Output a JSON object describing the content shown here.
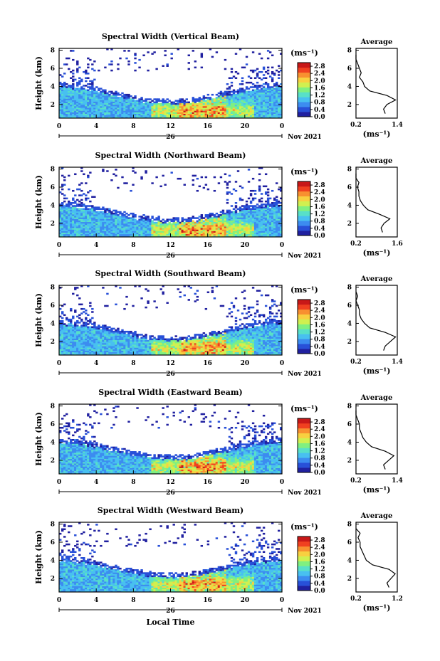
{
  "x_axis_label": "Local Time",
  "colorbar_unit": "(ms⁻¹)",
  "avg_title": "Average",
  "avg_unit": "(ms⁻¹)",
  "colors": [
    "#2020a0",
    "#2850d8",
    "#3c8cf0",
    "#48c0f0",
    "#58e0c8",
    "#80f080",
    "#d0f050",
    "#f8d040",
    "#f89030",
    "#f04020",
    "#c81818"
  ],
  "chart_data": [
    {
      "type": "heatmap",
      "title": "Spectral Width (Vertical Beam)",
      "ylabel": "Height (km)",
      "yticks": [
        "2",
        "4",
        "6",
        "8"
      ],
      "ylim": [
        0.5,
        8.2
      ],
      "xticks": [
        "0",
        "4",
        "8",
        "12",
        "16",
        "20",
        "0"
      ],
      "xlim": [
        0,
        24
      ],
      "date_labels": {
        "day": "26",
        "month_year": "Nov 2021"
      },
      "colorbar": {
        "ticks": [
          "0.0",
          "0.4",
          "0.8",
          "1.2",
          "1.6",
          "2.0",
          "2.4",
          "2.8"
        ],
        "range": [
          0,
          3.0
        ]
      },
      "average_profile": {
        "x_ticks": [
          "0.2",
          "1.4"
        ],
        "xlim": [
          0.2,
          1.4
        ],
        "y_ticks": [
          "2",
          "4",
          "6",
          "8"
        ],
        "ylim": [
          0.5,
          8.2
        ],
        "height": [
          1.0,
          1.5,
          2.0,
          2.5,
          3.0,
          3.5,
          4.0,
          4.5,
          5.0,
          5.5,
          6.0,
          6.5,
          7.0,
          7.5
        ],
        "value": [
          1.05,
          1.0,
          1.1,
          1.35,
          1.1,
          0.6,
          0.45,
          0.4,
          0.3,
          0.35,
          0.3,
          0.25,
          0.2,
          0.2
        ]
      }
    },
    {
      "type": "heatmap",
      "title": "Spectral Width (Northward Beam)",
      "ylabel": "Height (km)",
      "yticks": [
        "2",
        "4",
        "6",
        "8"
      ],
      "ylim": [
        0.5,
        8.2
      ],
      "xticks": [
        "0",
        "4",
        "8",
        "12",
        "16",
        "20",
        "0"
      ],
      "xlim": [
        0,
        24
      ],
      "date_labels": {
        "day": "26",
        "month_year": "Nov 2021"
      },
      "colorbar": {
        "ticks": [
          "0.0",
          "0.4",
          "0.8",
          "1.2",
          "1.6",
          "2.0",
          "2.4",
          "2.8"
        ],
        "range": [
          0,
          3.0
        ]
      },
      "average_profile": {
        "x_ticks": [
          "0.2",
          "1.6"
        ],
        "xlim": [
          0.2,
          1.6
        ],
        "y_ticks": [
          "2",
          "4",
          "6",
          "8"
        ],
        "ylim": [
          0.5,
          8.2
        ],
        "height": [
          1.0,
          1.5,
          2.0,
          2.5,
          3.0,
          3.5,
          4.0,
          4.5,
          5.0,
          5.5,
          6.0,
          6.5,
          7.0,
          7.5
        ],
        "value": [
          1.1,
          1.05,
          1.15,
          1.35,
          1.0,
          0.6,
          0.45,
          0.35,
          0.3,
          0.3,
          0.25,
          0.3,
          0.2,
          0.2
        ]
      }
    },
    {
      "type": "heatmap",
      "title": "Spectral Width (Southward Beam)",
      "ylabel": "Height (km)",
      "yticks": [
        "2",
        "4",
        "6",
        "8"
      ],
      "ylim": [
        0.5,
        8.2
      ],
      "xticks": [
        "0",
        "4",
        "8",
        "12",
        "16",
        "20",
        "0"
      ],
      "xlim": [
        0,
        24
      ],
      "date_labels": {
        "day": "26",
        "month_year": "Nov 2021"
      },
      "colorbar": {
        "ticks": [
          "0.0",
          "0.4",
          "0.8",
          "1.2",
          "1.6",
          "2.0",
          "2.4",
          "2.8"
        ],
        "range": [
          0,
          3.0
        ]
      },
      "average_profile": {
        "x_ticks": [
          "0.2",
          "1.4"
        ],
        "xlim": [
          0.2,
          1.4
        ],
        "y_ticks": [
          "2",
          "4",
          "6",
          "8"
        ],
        "ylim": [
          0.5,
          8.2
        ],
        "height": [
          1.0,
          1.5,
          2.0,
          2.5,
          3.0,
          3.5,
          4.0,
          4.5,
          5.0,
          5.5,
          6.0,
          6.5,
          7.0,
          7.5
        ],
        "value": [
          1.0,
          1.05,
          1.2,
          1.35,
          1.05,
          0.6,
          0.45,
          0.35,
          0.3,
          0.3,
          0.25,
          0.2,
          0.25,
          0.2
        ]
      }
    },
    {
      "type": "heatmap",
      "title": "Spectral Width (Eastward Beam)",
      "ylabel": "Height (km)",
      "yticks": [
        "2",
        "4",
        "6",
        "8"
      ],
      "ylim": [
        0.5,
        8.2
      ],
      "xticks": [
        "0",
        "4",
        "8",
        "12",
        "16",
        "20",
        "0"
      ],
      "xlim": [
        0,
        24
      ],
      "date_labels": {
        "day": "26",
        "month_year": "Nov 2021"
      },
      "colorbar": {
        "ticks": [
          "0.0",
          "0.4",
          "0.8",
          "1.2",
          "1.6",
          "2.0",
          "2.4",
          "2.8"
        ],
        "range": [
          0,
          3.0
        ]
      },
      "average_profile": {
        "x_ticks": [
          "0.2",
          "1.4"
        ],
        "xlim": [
          0.2,
          1.4
        ],
        "y_ticks": [
          "2",
          "4",
          "6",
          "8"
        ],
        "ylim": [
          0.5,
          8.2
        ],
        "height": [
          1.0,
          1.5,
          2.0,
          2.5,
          3.0,
          3.5,
          4.0,
          4.5,
          5.0,
          5.5,
          6.0,
          6.5,
          7.0,
          7.5
        ],
        "value": [
          1.05,
          1.0,
          1.15,
          1.3,
          1.05,
          0.65,
          0.5,
          0.4,
          0.35,
          0.3,
          0.3,
          0.25,
          0.2,
          0.2
        ]
      }
    },
    {
      "type": "heatmap",
      "title": "Spectral Width (Westward Beam)",
      "ylabel": "Height (km)",
      "yticks": [
        "2",
        "4",
        "6",
        "8"
      ],
      "ylim": [
        0.5,
        8.2
      ],
      "xticks": [
        "0",
        "4",
        "8",
        "12",
        "16",
        "20",
        "0"
      ],
      "xlim": [
        0,
        24
      ],
      "date_labels": {
        "day": "26",
        "month_year": "Nov 2021"
      },
      "colorbar": {
        "ticks": [
          "0.0",
          "0.4",
          "0.8",
          "1.2",
          "1.6",
          "2.0",
          "2.4",
          "2.8"
        ],
        "range": [
          0,
          3.0
        ]
      },
      "average_profile": {
        "x_ticks": [
          "0.2",
          "1.2"
        ],
        "xlim": [
          0.2,
          1.2
        ],
        "y_ticks": [
          "2",
          "4",
          "6",
          "8"
        ],
        "ylim": [
          0.5,
          8.2
        ],
        "height": [
          1.0,
          1.5,
          2.0,
          2.5,
          3.0,
          3.5,
          4.0,
          4.5,
          5.0,
          5.5,
          6.0,
          6.5,
          7.0,
          7.5
        ],
        "value": [
          1.0,
          0.95,
          1.05,
          1.15,
          1.0,
          0.6,
          0.45,
          0.4,
          0.35,
          0.3,
          0.3,
          0.25,
          0.3,
          0.2
        ]
      }
    }
  ]
}
